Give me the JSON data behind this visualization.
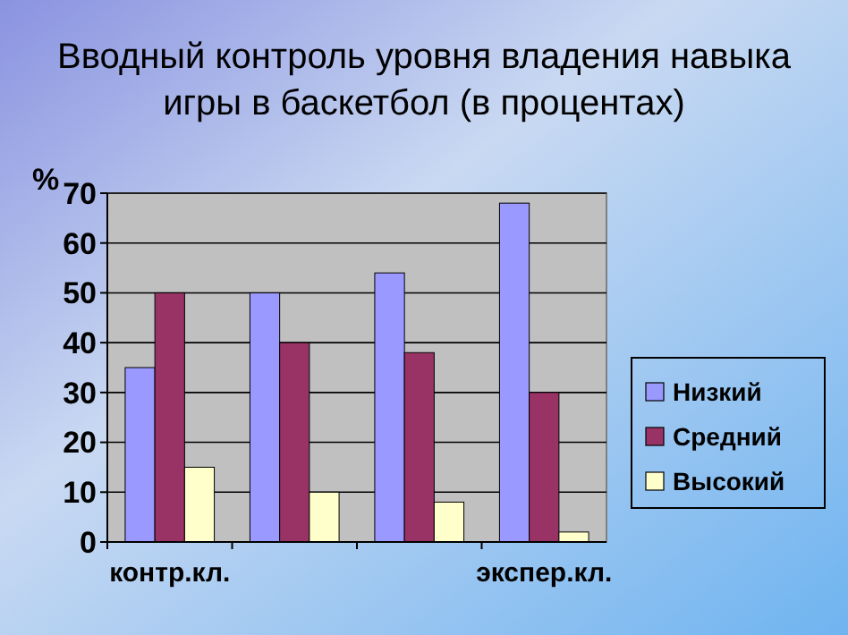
{
  "chart_data": {
    "type": "bar",
    "title": "Вводный контроль уровня владения навыка игры в баскетбол (в процентах)",
    "ylabel": "%",
    "categories": [
      "контр.кл.",
      null,
      null,
      "экспер.кл."
    ],
    "series": [
      {
        "name": "Низкий",
        "color": "#9999ff",
        "values": [
          35,
          50,
          54,
          68
        ]
      },
      {
        "name": "Средний",
        "color": "#993366",
        "values": [
          50,
          40,
          38,
          30
        ]
      },
      {
        "name": "Высокий",
        "color": "#ffffcc",
        "values": [
          15,
          10,
          8,
          2
        ]
      }
    ],
    "ylim": [
      0,
      70
    ],
    "yticks": [
      0,
      10,
      20,
      30,
      40,
      50,
      60,
      70
    ],
    "grid": "y",
    "legend": "right"
  }
}
